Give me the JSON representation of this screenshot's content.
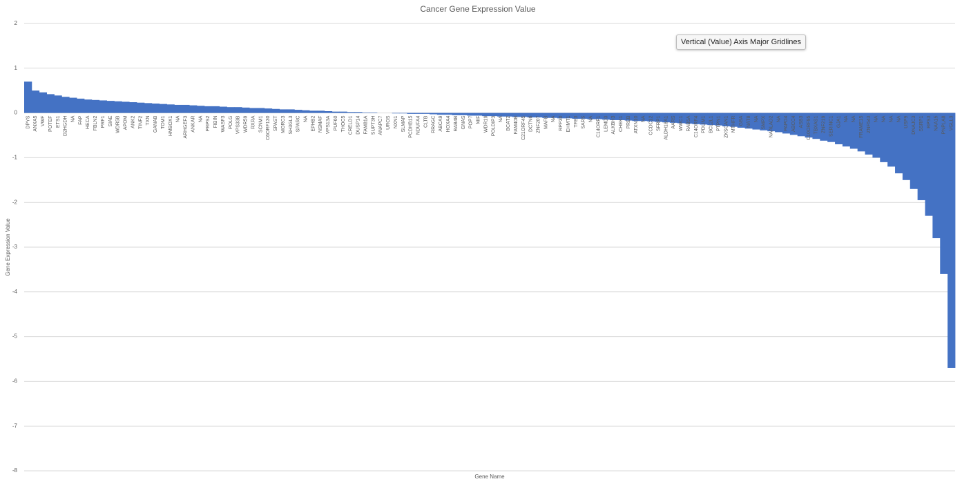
{
  "chart_data": {
    "type": "bar",
    "title": "Cancer Gene Expression Value",
    "x_label": "Gene Name",
    "y_label": "Gene Expression Value",
    "tooltip": "Vertical (Value) Axis Major Gridlines",
    "color": "#4472c4",
    "grid": true,
    "ylim": [
      -8,
      2
    ],
    "yticks": [
      2,
      1,
      0,
      -1,
      -2,
      -3,
      -4,
      -5,
      -6,
      -7,
      -8
    ],
    "categories": [
      "DPYS",
      "ANXA5",
      "VWF",
      "POTEF",
      "ETS1",
      "D2HGDH",
      "NA",
      "FAP",
      "HECA",
      "FBLN2",
      "PRF1",
      "SIAE",
      "WDR5B",
      "APOM",
      "ANK2",
      "TINF2",
      "TXN",
      "GANAB",
      "TOM1",
      "HMBOX1",
      "NA",
      "ARHGEF3",
      "ANKAR",
      "NA",
      "PRPS2",
      "FIBIN",
      "WASF3",
      "POLG",
      "VPS33B",
      "WDR59",
      "RXRA",
      "SCNM1",
      "C6ORF130",
      "SPAST",
      "MORC3",
      "SH3GL3",
      "SPARC",
      "NA",
      "EPHB2",
      "NSMAF",
      "VPS13A",
      "PUF60",
      "THOC5",
      "CRELD1",
      "DUSP14",
      "FAM81A",
      "SUPT3H",
      "ANAPC7",
      "UROS",
      "NXN1",
      "SLMAP",
      "PCDHB15",
      "NDUFA4",
      "CLTB",
      "RRAGC",
      "ABCA9",
      "HOXA4",
      "RAB4B",
      "GNAS",
      "POP7",
      "MIF",
      "WDR19",
      "POLDIP3",
      "NA",
      "BCAT2",
      "FAM40B",
      "C21ORF45",
      "DCTN6",
      "ZNF207",
      "MAFB",
      "NA",
      "RPP30",
      "EHMT1",
      "TFE3",
      "SARS",
      "NA",
      "C14ORF1",
      "LEMD3",
      "ALKBH3",
      "CHEK1",
      "PREB",
      "ATXN10",
      "NA",
      "CCDC12",
      "SFRP1",
      "ALDH18A1",
      "AARS",
      "WWC1",
      "RAB5A",
      "C14ORF4",
      "PDLIM1",
      "BCL2L1",
      "PTPN1",
      "ZKSCAN1",
      "MTHFR",
      "GBA",
      "NAT8",
      "NA",
      "SMPX",
      "NAALAD2",
      "NA",
      "PAPD4",
      "ABCC4",
      "ASB3",
      "C10ORF95",
      "TBXAS1",
      "ZNF219",
      "SERINC1",
      "GJA1",
      "NA",
      "NA",
      "FRAME15",
      "ZNF543",
      "NA",
      "NA",
      "NA",
      "NA",
      "USP9",
      "DNAJC3",
      "SSRP1",
      "RPS3",
      "NAA15",
      "PNPLA8",
      "VGLL3"
    ],
    "values": [
      0.7,
      0.5,
      0.46,
      0.42,
      0.39,
      0.36,
      0.34,
      0.32,
      0.3,
      0.29,
      0.28,
      0.27,
      0.26,
      0.25,
      0.24,
      0.23,
      0.22,
      0.21,
      0.2,
      0.19,
      0.18,
      0.18,
      0.17,
      0.16,
      0.15,
      0.15,
      0.14,
      0.13,
      0.13,
      0.12,
      0.11,
      0.11,
      0.1,
      0.09,
      0.08,
      0.08,
      0.07,
      0.06,
      0.05,
      0.05,
      0.04,
      0.03,
      0.03,
      0.02,
      0.02,
      0.01,
      0.01,
      0,
      0,
      -0.01,
      -0.01,
      -0.02,
      -0.02,
      -0.02,
      -0.03,
      -0.04,
      -0.04,
      -0.05,
      -0.05,
      -0.06,
      -0.06,
      -0.07,
      -0.07,
      -0.08,
      -0.08,
      -0.09,
      -0.09,
      -0.1,
      -0.1,
      -0.11,
      -0.11,
      -0.12,
      -0.12,
      -0.13,
      -0.13,
      -0.14,
      -0.14,
      -0.15,
      -0.16,
      -0.16,
      -0.17,
      -0.18,
      -0.18,
      -0.19,
      -0.2,
      -0.21,
      -0.22,
      -0.23,
      -0.24,
      -0.25,
      -0.26,
      -0.27,
      -0.28,
      -0.3,
      -0.31,
      -0.33,
      -0.35,
      -0.37,
      -0.39,
      -0.41,
      -0.43,
      -0.46,
      -0.49,
      -0.52,
      -0.55,
      -0.58,
      -0.62,
      -0.65,
      -0.7,
      -0.75,
      -0.8,
      -0.86,
      -0.93,
      -1.0,
      -1.1,
      -1.2,
      -1.35,
      -1.5,
      -1.7,
      -1.95,
      -2.3,
      -2.8,
      -3.6,
      -5.7
    ]
  }
}
